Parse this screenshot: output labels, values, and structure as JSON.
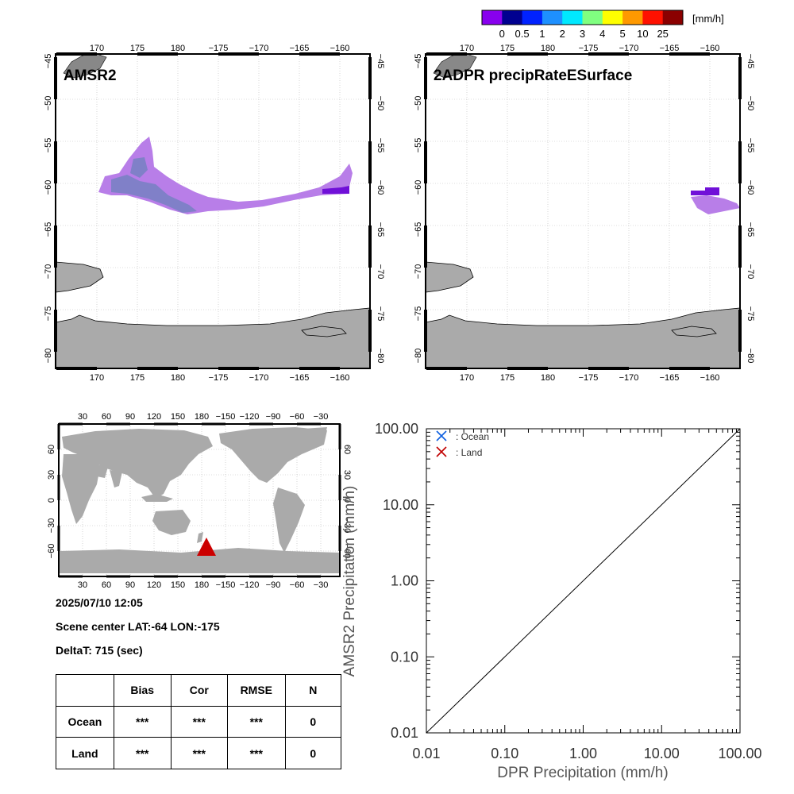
{
  "colorbar": {
    "unit": "[mm/h]",
    "labels": [
      "0",
      "0.5",
      "1",
      "2",
      "3",
      "4",
      "5",
      "10",
      "25"
    ],
    "colors": [
      "#8800ee",
      "#000090",
      "#0022ff",
      "#1e90ff",
      "#00e8ff",
      "#80ff80",
      "#ffff00",
      "#ff9900",
      "#ff1100",
      "#8b0000"
    ]
  },
  "panels": {
    "amsr2": {
      "title": "AMSR2"
    },
    "dpr": {
      "title": "2ADPR precipRateESurface"
    },
    "lon_ticks": [
      "170",
      "175",
      "180",
      "−175",
      "−170",
      "−165",
      "−160"
    ],
    "lat_ticks": [
      "−45",
      "−50",
      "−55",
      "−60",
      "−65",
      "−70",
      "−75",
      "−80"
    ],
    "land_color": "#aaaaaa",
    "precip_colors": {
      "light": "#b87ee8",
      "medium": "#8080c8",
      "strong": "#7010d8"
    }
  },
  "world_map": {
    "lon_ticks": [
      "30",
      "60",
      "90",
      "120",
      "150",
      "180",
      "−150",
      "−120",
      "−90",
      "−60",
      "−30"
    ],
    "lat_ticks": [
      "60",
      "30",
      "0",
      "−30",
      "−60"
    ],
    "marker_color": "#cc0000"
  },
  "info": {
    "datetime": "2025/07/10 12:05",
    "scene_center": "Scene center LAT:-64   LON:-175",
    "delta_t": "DeltaT:  715 (sec)"
  },
  "stats_table": {
    "headers": [
      "",
      "Bias",
      "Cor",
      "RMSE",
      "N"
    ],
    "rows": [
      [
        "Ocean",
        "***",
        "***",
        "***",
        "0"
      ],
      [
        "Land",
        "***",
        "***",
        "***",
        "0"
      ]
    ]
  },
  "chart_data": {
    "type": "scatter",
    "title": "",
    "xlabel": "DPR Precipitation (mm/h)",
    "ylabel": "AMSR2 Precipitation (mm/h)",
    "xscale": "log",
    "yscale": "log",
    "xlim": [
      0.01,
      100
    ],
    "ylim": [
      0.01,
      100
    ],
    "x_tick_labels": [
      "0.01",
      "0.10",
      "1.00",
      "10.00",
      "100.00"
    ],
    "y_tick_labels": [
      "0.01",
      "0.10",
      "1.00",
      "10.00",
      "100.00"
    ],
    "reference_line": "1:1",
    "legend_position": "top-left",
    "series": [
      {
        "name": ": Ocean",
        "color": "#1060e0",
        "marker": "x",
        "points": []
      },
      {
        "name": ": Land",
        "color": "#c00000",
        "marker": "x",
        "points": []
      }
    ]
  }
}
